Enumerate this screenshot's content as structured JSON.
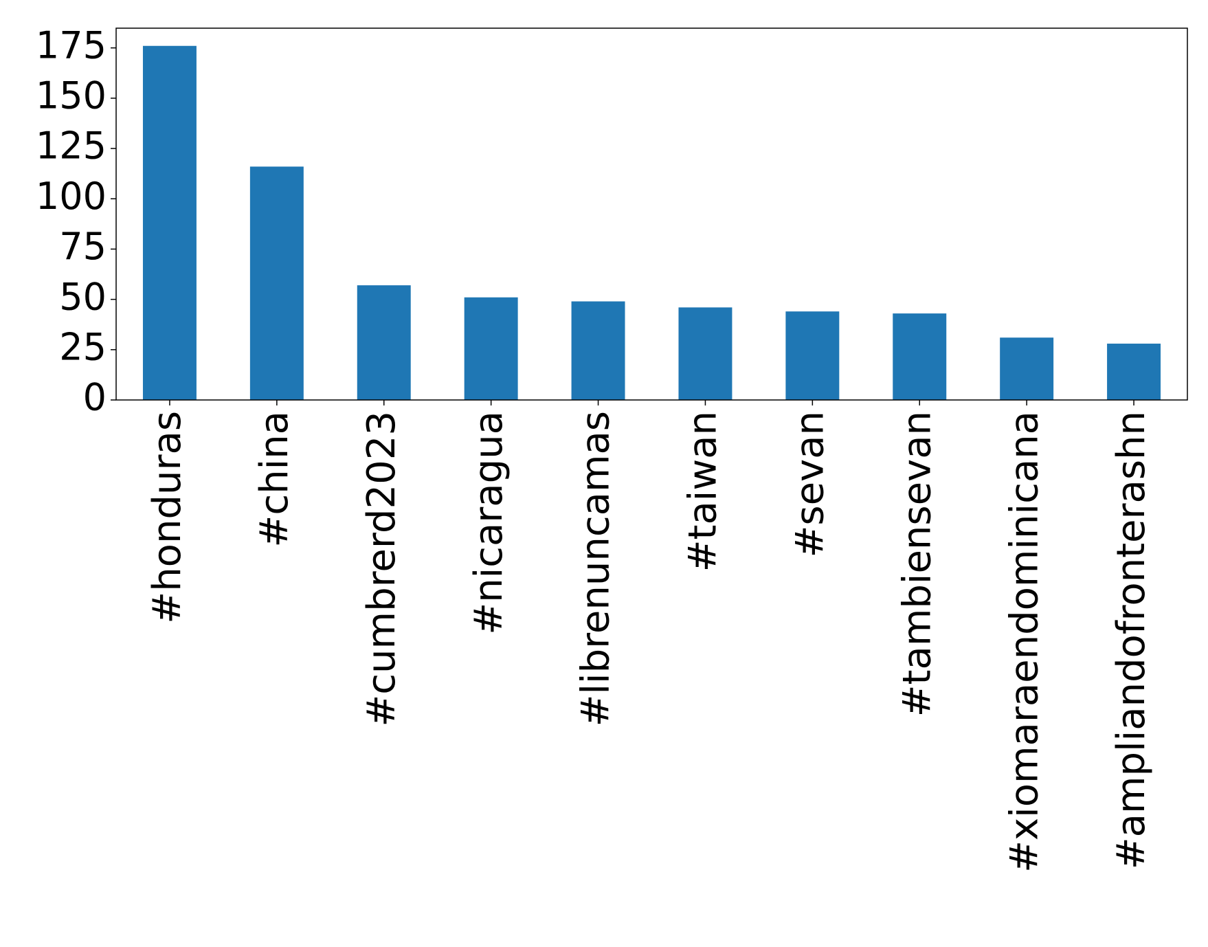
{
  "chart_data": {
    "type": "bar",
    "categories": [
      "#honduras",
      "#china",
      "#cumbrerd2023",
      "#nicaragua",
      "#librenuncamas",
      "#taiwan",
      "#sevan",
      "#tambiensevan",
      "#xiomaraendominicana",
      "#ampliandofronterashn"
    ],
    "values": [
      176,
      116,
      57,
      51,
      49,
      46,
      44,
      43,
      31,
      28
    ],
    "color": "#1f77b4",
    "ylim": [
      0,
      184.8
    ],
    "yticks": [
      0,
      25,
      50,
      75,
      100,
      125,
      150,
      175
    ],
    "grid": false
  }
}
